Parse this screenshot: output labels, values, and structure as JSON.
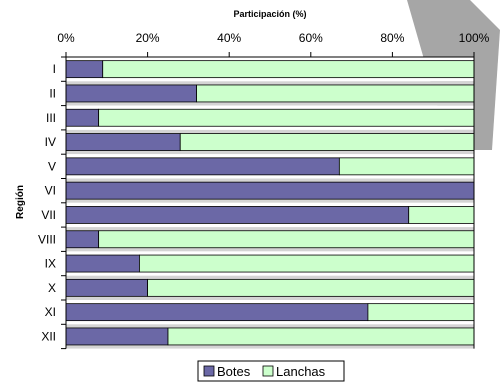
{
  "chart_data": {
    "type": "bar",
    "orientation": "horizontal",
    "stacked": true,
    "percent": true,
    "title": "Participación (%)",
    "xlabel": "",
    "ylabel": "Región",
    "xlim": [
      0,
      100
    ],
    "x_ticks": [
      "0%",
      "20%",
      "40%",
      "60%",
      "80%",
      "100%"
    ],
    "categories": [
      "I",
      "II",
      "III",
      "IV",
      "V",
      "VI",
      "VII",
      "VIII",
      "IX",
      "X",
      "XI",
      "XII"
    ],
    "series": [
      {
        "name": "Botes",
        "color": "#6b68a6",
        "values": [
          9,
          32,
          8,
          28,
          67,
          100,
          84,
          8,
          18,
          20,
          74,
          25
        ]
      },
      {
        "name": "Lanchas",
        "color": "#ccffcc",
        "values": [
          91,
          68,
          92,
          72,
          33,
          0,
          16,
          92,
          82,
          80,
          26,
          75
        ]
      }
    ],
    "legend_position": "bottom",
    "grid": false,
    "row_bands": true
  },
  "colors": {
    "band": "#d4d4d4",
    "shadow_shape": "#a6a6a6"
  }
}
